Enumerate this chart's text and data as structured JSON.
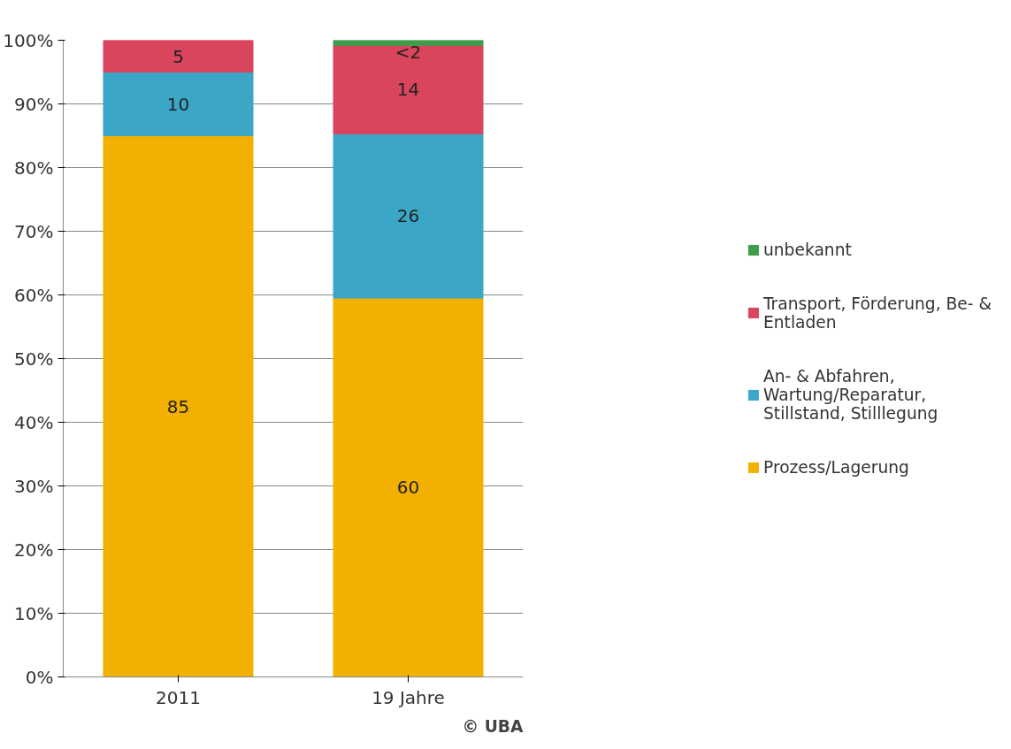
{
  "chart_data": {
    "type": "bar",
    "stacked": true,
    "categories": [
      "2011",
      "19 Jahre"
    ],
    "series": [
      {
        "name": "Prozess/Lagerung",
        "color": "#f2b100",
        "values": [
          85,
          59.5
        ],
        "value_labels": [
          "85",
          "60"
        ]
      },
      {
        "name": "An- & Abfahren, Wartung/Reparatur, Stillstand, Stilllegung",
        "color": "#3ba6c6",
        "values": [
          10,
          25.8
        ],
        "value_labels": [
          "10",
          "26"
        ]
      },
      {
        "name": "Transport, Förderung, Be- & Entladen",
        "color": "#d8455c",
        "values": [
          5,
          13.9
        ],
        "value_labels": [
          "5",
          "14"
        ]
      },
      {
        "name": "unbekannt",
        "color": "#3f9c48",
        "values": [
          null,
          0.8
        ],
        "value_labels": [
          null,
          "<2"
        ]
      }
    ],
    "ylim": [
      0,
      100
    ],
    "yticks": [
      {
        "value": 0,
        "label": "0%"
      },
      {
        "value": 10,
        "label": "10%"
      },
      {
        "value": 20,
        "label": "20%"
      },
      {
        "value": 30,
        "label": "30%"
      },
      {
        "value": 40,
        "label": "40%"
      },
      {
        "value": 50,
        "label": "50%"
      },
      {
        "value": 60,
        "label": "60%"
      },
      {
        "value": 70,
        "label": "70%"
      },
      {
        "value": 80,
        "label": "80%"
      },
      {
        "value": 90,
        "label": "90%"
      },
      {
        "value": 100,
        "label": "100%"
      }
    ],
    "grid": "y",
    "legend": "right",
    "annotations": [
      "© UBA"
    ]
  }
}
